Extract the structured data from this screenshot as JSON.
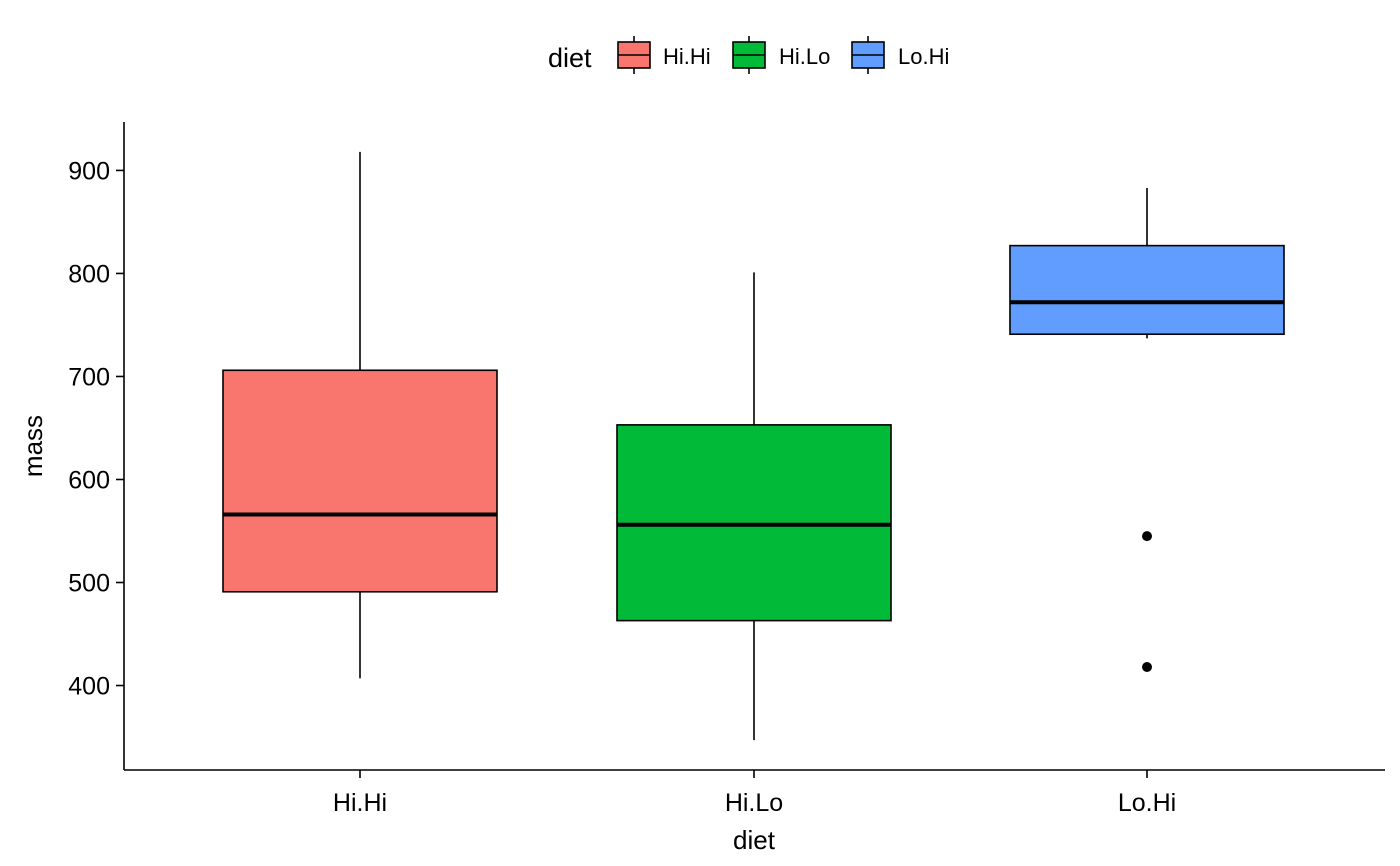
{
  "chart_data": {
    "type": "boxplot",
    "xlabel": "diet",
    "ylabel": "mass",
    "categories": [
      "Hi.Hi",
      "Hi.Lo",
      "Lo.Hi"
    ],
    "yticks": [
      400,
      500,
      600,
      700,
      800,
      900
    ],
    "ylim": [
      318,
      947
    ],
    "grid": false,
    "legend": {
      "title": "diet",
      "position": "top",
      "entries": [
        "Hi.Hi",
        "Hi.Lo",
        "Lo.Hi"
      ]
    },
    "series": [
      {
        "category": "Hi.Hi",
        "color": "#F8766D",
        "whisker_low": 407,
        "q1": 491,
        "median": 566,
        "q3": 706,
        "whisker_high": 918,
        "outliers": []
      },
      {
        "category": "Hi.Lo",
        "color": "#00BA38",
        "whisker_low": 347,
        "q1": 463,
        "median": 556,
        "q3": 653,
        "whisker_high": 801,
        "outliers": []
      },
      {
        "category": "Lo.Hi",
        "color": "#619CFF",
        "whisker_low": 737,
        "q1": 741,
        "median": 772,
        "q3": 827,
        "whisker_high": 883,
        "outliers": [
          545,
          418
        ]
      }
    ]
  }
}
